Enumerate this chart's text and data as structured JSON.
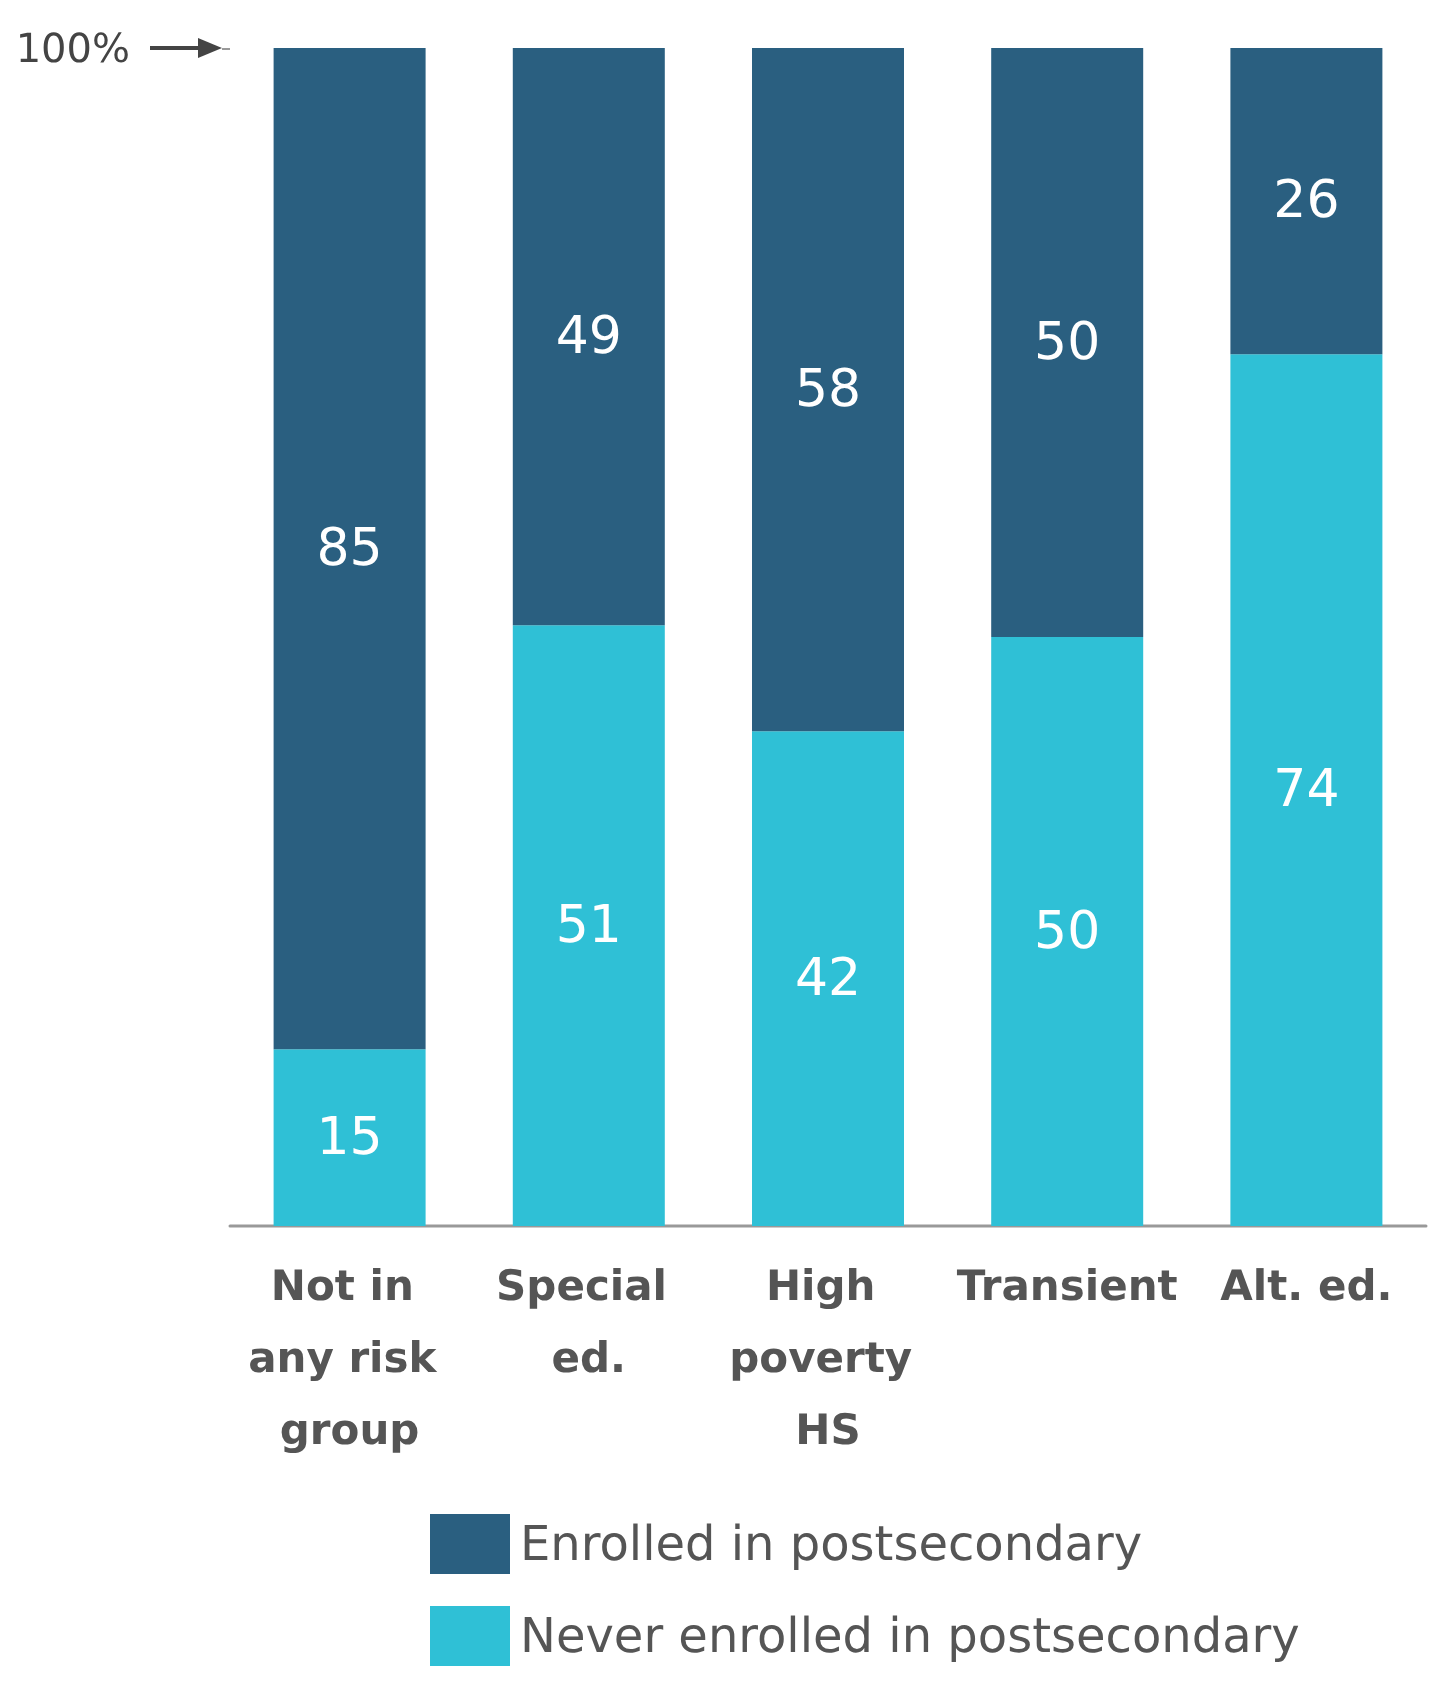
{
  "chart_data": {
    "type": "bar",
    "stacked": true,
    "categories": [
      "Not in any risk group",
      "Special ed.",
      "High poverty HS",
      "Transient",
      "Alt. ed."
    ],
    "series": [
      {
        "name": "Never enrolled in postsecondary",
        "color": "#2fc0d6",
        "values": [
          15,
          51,
          42,
          50,
          74
        ]
      },
      {
        "name": "Enrolled in postsecondary",
        "color": "#2a5f80",
        "values": [
          85,
          49,
          58,
          50,
          26
        ]
      }
    ],
    "ylim": [
      0,
      100
    ],
    "yticks": [
      {
        "value": 100,
        "label": "100%"
      }
    ],
    "data_labels": true,
    "legend": "bottom",
    "grid": false
  }
}
